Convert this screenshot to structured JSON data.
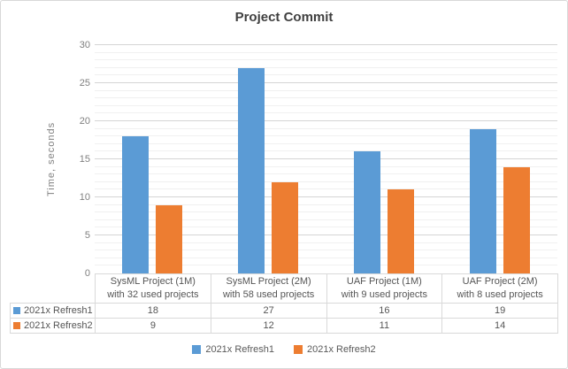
{
  "colors": {
    "series1": "#5B9BD5",
    "series2": "#ED7D31",
    "title_text": "#404040",
    "axis_text": "#7f7f7f",
    "table_text": "#555555",
    "legend_text": "#595959",
    "grid_major": "#d5d5d5",
    "grid_minor": "#f0f0f0",
    "table_border": "#d9d9d9",
    "frame_border": "#d8d8d8"
  },
  "chart_data": {
    "type": "bar",
    "title": "Project Commit",
    "xlabel": "",
    "ylabel": "Time, seconds",
    "ylim": [
      0,
      30
    ],
    "y_major_step": 5,
    "y_minor_step": 1,
    "grid": true,
    "legend_position": "bottom",
    "show_data_table": true,
    "categories": [
      {
        "line1": "SysML Project (1M)",
        "line2": "with 32 used projects"
      },
      {
        "line1": "SysML Project (2M)",
        "line2": "with 58 used projects"
      },
      {
        "line1": "UAF Project (1M)",
        "line2": "with 9 used projects"
      },
      {
        "line1": "UAF Project (2M)",
        "line2": "with 8 used projects"
      }
    ],
    "series": [
      {
        "name": "2021x Refresh1",
        "color": "#5B9BD5",
        "values": [
          18,
          27,
          16,
          19
        ]
      },
      {
        "name": "2021x Refresh2",
        "color": "#ED7D31",
        "values": [
          9,
          12,
          11,
          14
        ]
      }
    ]
  }
}
